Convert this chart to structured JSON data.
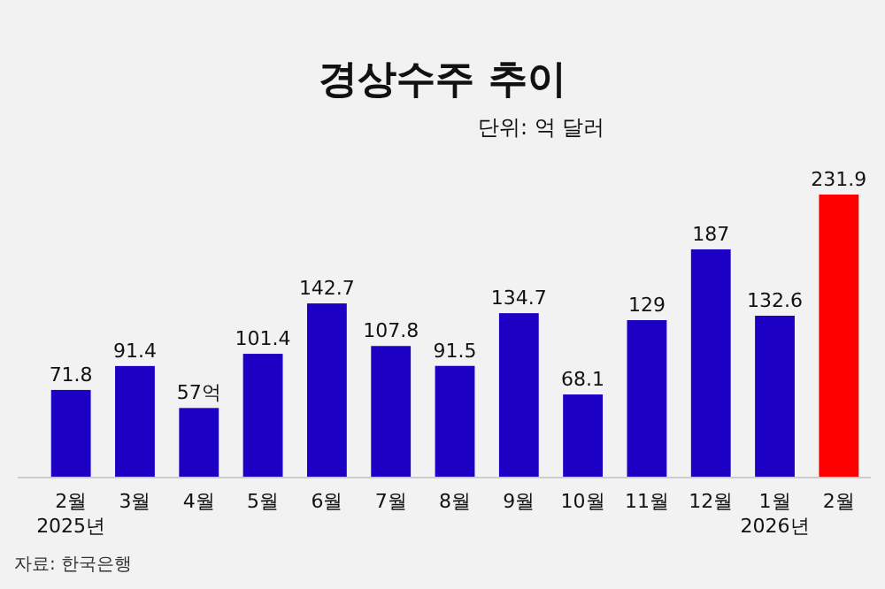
{
  "chart_data": {
    "type": "bar",
    "title": "경상수주 추이",
    "subtitle": "단위: 억 달러",
    "categories": [
      "2월\n2025년",
      "3월",
      "4월",
      "5월",
      "6월",
      "7월",
      "8월",
      "9월",
      "10월",
      "11월",
      "12월",
      "1월\n2026년",
      "2월"
    ],
    "values": [
      71.8,
      91.4,
      57,
      101.4,
      142.7,
      107.8,
      91.5,
      134.7,
      68.1,
      129,
      187,
      132.6,
      231.9
    ],
    "value_labels": [
      "71.8",
      "91.4",
      "57억",
      "101.4",
      "142.7",
      "107.8",
      "91.5",
      "134.7",
      "68.1",
      "129",
      "187",
      "132.6",
      "231.9"
    ],
    "colors": [
      "#1c00c4",
      "#1c00c4",
      "#1c00c4",
      "#1c00c4",
      "#1c00c4",
      "#1c00c4",
      "#1c00c4",
      "#1c00c4",
      "#1c00c4",
      "#1c00c4",
      "#1c00c4",
      "#1c00c4",
      "#ff0000"
    ],
    "annotations": [
      "자료: 한국은행"
    ]
  }
}
